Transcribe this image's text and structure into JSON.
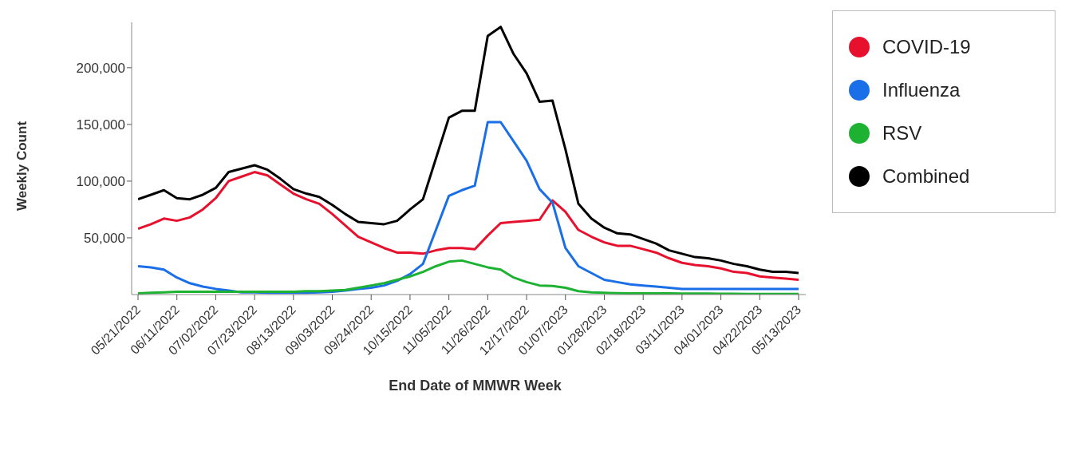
{
  "chart_data": {
    "type": "line",
    "xlabel": "End Date of MMWR Week",
    "ylabel": "Weekly Count",
    "categories": [
      "05/21/2022",
      null,
      null,
      "06/11/2022",
      null,
      null,
      "07/02/2022",
      null,
      null,
      "07/23/2022",
      null,
      null,
      "08/13/2022",
      null,
      null,
      "09/03/2022",
      null,
      null,
      "09/24/2022",
      null,
      null,
      "10/15/2022",
      null,
      null,
      "11/05/2022",
      null,
      null,
      "11/26/2022",
      null,
      null,
      "12/17/2022",
      null,
      null,
      "01/07/2023",
      null,
      null,
      "01/28/2023",
      null,
      null,
      "02/18/2023",
      null,
      null,
      "03/11/2023",
      null,
      null,
      "04/01/2023",
      null,
      null,
      "04/22/2023",
      null,
      null,
      "05/13/2023"
    ],
    "series": [
      {
        "name": "COVID-19",
        "color": "#e8112d",
        "values": [
          58000,
          62000,
          67000,
          65000,
          68000,
          75000,
          85000,
          100000,
          104000,
          108000,
          105000,
          97000,
          89000,
          84000,
          80000,
          71000,
          61000,
          51000,
          46000,
          41000,
          37000,
          37000,
          36000,
          39000,
          41000,
          41000,
          40000,
          52000,
          63000,
          64000,
          65000,
          66000,
          83000,
          73000,
          57000,
          51000,
          46000,
          43000,
          43000,
          40000,
          37000,
          32000,
          28000,
          26000,
          25000,
          23000,
          20000,
          19000,
          16000,
          15000,
          14000,
          13000
        ]
      },
      {
        "name": "Influenza",
        "color": "#1a6fe8",
        "values": [
          25000,
          24000,
          22000,
          15000,
          10000,
          7000,
          5000,
          3500,
          2000,
          2000,
          1500,
          1500,
          1500,
          1500,
          2000,
          2500,
          3500,
          5000,
          6000,
          8000,
          12000,
          18000,
          27000,
          57000,
          87000,
          92000,
          96000,
          152000,
          152000,
          135000,
          118000,
          93000,
          81000,
          41000,
          25000,
          19000,
          13000,
          11000,
          9000,
          8000,
          7000,
          6000,
          5000,
          5000,
          5000,
          5000,
          5000,
          5000,
          5000,
          5000,
          5000,
          5000
        ]
      },
      {
        "name": "RSV",
        "color": "#1db232",
        "values": [
          1000,
          1500,
          2000,
          2500,
          2500,
          2500,
          2500,
          2500,
          2500,
          2500,
          2500,
          2500,
          2500,
          3000,
          3000,
          3500,
          4000,
          6000,
          8000,
          10000,
          13000,
          16000,
          20000,
          25000,
          29000,
          30000,
          27000,
          24000,
          22000,
          15000,
          11000,
          8000,
          7500,
          6000,
          3000,
          2000,
          1500,
          1200,
          1000,
          1000,
          1000,
          1000,
          800,
          800,
          800,
          700,
          700,
          600,
          600,
          500,
          500,
          500
        ]
      },
      {
        "name": "Combined",
        "color": "#000000",
        "values": [
          84000,
          88000,
          92000,
          85000,
          84000,
          88000,
          94000,
          108000,
          111000,
          114000,
          110000,
          102000,
          93000,
          89000,
          86000,
          79000,
          71000,
          64000,
          63000,
          62000,
          65000,
          75000,
          84000,
          120000,
          156000,
          162000,
          162000,
          228000,
          236000,
          212000,
          195000,
          170000,
          171000,
          128000,
          80000,
          67000,
          59000,
          54000,
          53000,
          49000,
          45000,
          39000,
          36000,
          33000,
          32000,
          30000,
          27000,
          25000,
          22000,
          20000,
          20000,
          19000
        ]
      }
    ],
    "ylim": [
      0,
      240000
    ],
    "yticks": [
      {
        "value": 50000,
        "label": "50,000"
      },
      {
        "value": 100000,
        "label": "100,000"
      },
      {
        "value": 150000,
        "label": "150,000"
      },
      {
        "value": 200000,
        "label": "200,000"
      }
    ],
    "grid": false,
    "legend": "top right",
    "marker": "none",
    "line_style": "solid"
  }
}
